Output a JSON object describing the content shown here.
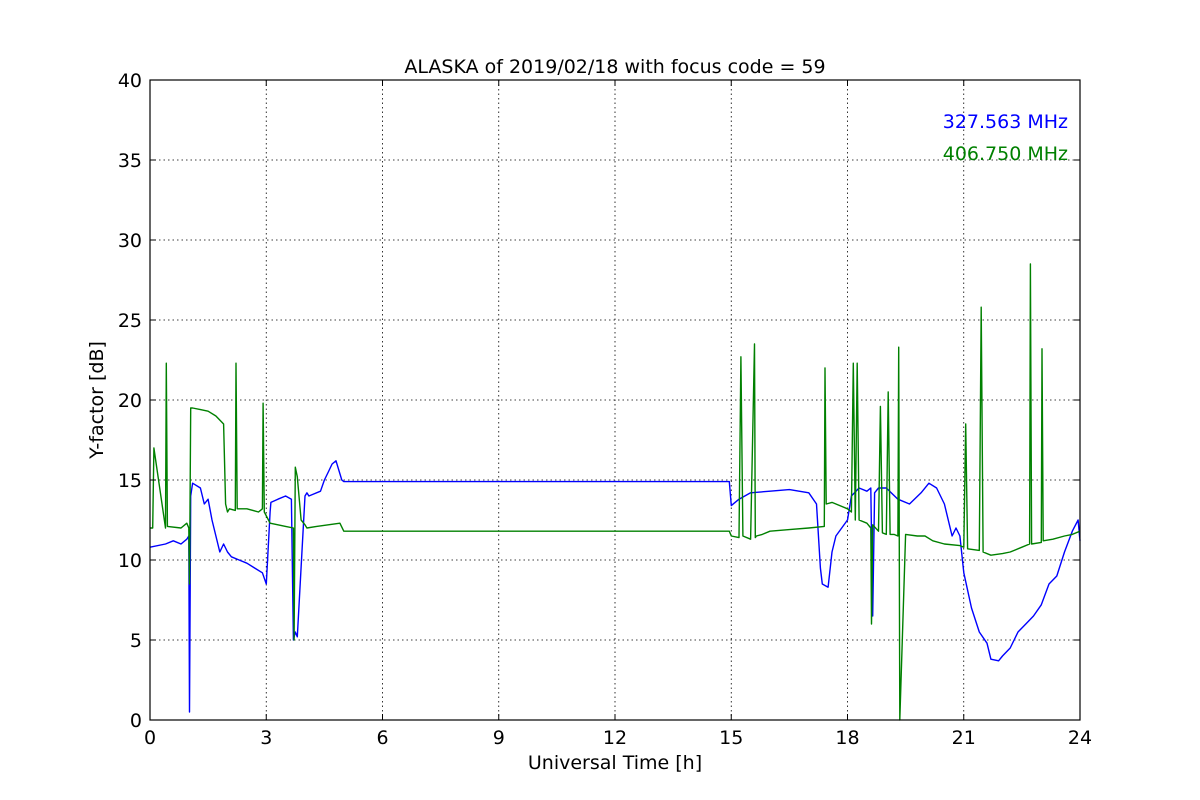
{
  "chart_data": {
    "type": "line",
    "title": "ALASKA of 2019/02/18 with focus code = 59",
    "xlabel": "Universal Time [h]",
    "ylabel": "Y-factor [dB]",
    "xlim": [
      0,
      24
    ],
    "ylim": [
      0,
      40
    ],
    "xticks": [
      0,
      3,
      6,
      9,
      12,
      15,
      18,
      21,
      24
    ],
    "yticks": [
      0,
      5,
      10,
      15,
      20,
      25,
      30,
      35,
      40
    ],
    "grid": true,
    "legend_position": "top-right",
    "series": [
      {
        "name": "327.563 MHz",
        "color": "#0000ff",
        "x": [
          0,
          0.4,
          0.6,
          0.8,
          0.95,
          1.0,
          1.02,
          1.05,
          1.1,
          1.3,
          1.4,
          1.5,
          1.6,
          1.7,
          1.8,
          1.9,
          2.0,
          2.1,
          2.3,
          2.5,
          2.7,
          2.9,
          3.0,
          3.1,
          3.12,
          3.3,
          3.5,
          3.65,
          3.7,
          3.75,
          3.8,
          4.0,
          4.05,
          4.1,
          4.2,
          4.4,
          4.5,
          4.6,
          4.7,
          4.8,
          4.95,
          5.0,
          5.1,
          14.95,
          15.0,
          15.2,
          15.5,
          16.0,
          16.5,
          17.0,
          17.2,
          17.3,
          17.35,
          17.5,
          17.6,
          17.7,
          18.0,
          18.1,
          18.3,
          18.5,
          18.6,
          18.65,
          18.7,
          18.8,
          19.0,
          19.3,
          19.6,
          19.9,
          20.1,
          20.3,
          20.5,
          20.7,
          20.8,
          20.9,
          21.0,
          21.2,
          21.4,
          21.6,
          21.7,
          21.9,
          22.0,
          22.2,
          22.4,
          22.6,
          22.8,
          23.0,
          23.2,
          23.4,
          23.6,
          23.8,
          23.95,
          24.0
        ],
        "y": [
          10.8,
          11.0,
          11.2,
          11.0,
          11.3,
          11.5,
          0.5,
          14.0,
          14.8,
          14.5,
          13.5,
          13.8,
          12.5,
          11.5,
          10.5,
          11.0,
          10.5,
          10.2,
          10.0,
          9.8,
          9.5,
          9.2,
          8.5,
          13.0,
          13.6,
          13.8,
          14.0,
          13.8,
          5.0,
          5.5,
          5.2,
          14.0,
          14.2,
          14.0,
          14.1,
          14.3,
          15.0,
          15.5,
          16.0,
          16.2,
          15.0,
          14.9,
          14.9,
          14.9,
          13.4,
          13.8,
          14.2,
          14.3,
          14.4,
          14.2,
          13.5,
          9.5,
          8.5,
          8.3,
          10.5,
          11.5,
          12.5,
          14.0,
          14.5,
          14.3,
          14.5,
          6.5,
          14.2,
          14.5,
          14.5,
          13.8,
          13.5,
          14.2,
          14.8,
          14.5,
          13.5,
          11.5,
          12.0,
          11.5,
          9.2,
          7.0,
          5.5,
          4.8,
          3.8,
          3.7,
          4.0,
          4.5,
          5.5,
          6.0,
          6.5,
          7.2,
          8.5,
          9.0,
          10.5,
          11.8,
          12.5,
          11.2
        ]
      },
      {
        "name": "406.750 MHz",
        "color": "#008000",
        "x": [
          0,
          0.07,
          0.1,
          0.4,
          0.42,
          0.45,
          0.8,
          0.95,
          1.0,
          1.02,
          1.05,
          1.1,
          1.3,
          1.5,
          1.7,
          1.9,
          1.95,
          2.0,
          2.05,
          2.2,
          2.22,
          2.25,
          2.5,
          2.8,
          2.9,
          2.92,
          2.95,
          3.1,
          3.3,
          3.5,
          3.7,
          3.72,
          3.75,
          3.8,
          3.9,
          4.0,
          4.05,
          4.3,
          4.6,
          4.9,
          5.0,
          5.1,
          14.95,
          15.0,
          15.2,
          15.25,
          15.3,
          15.5,
          15.6,
          15.62,
          15.65,
          15.8,
          16.0,
          16.5,
          17.0,
          17.4,
          17.42,
          17.45,
          17.6,
          18.0,
          18.1,
          18.15,
          18.2,
          18.25,
          18.3,
          18.5,
          18.6,
          18.62,
          18.65,
          18.8,
          18.85,
          18.9,
          19.0,
          19.05,
          19.1,
          19.2,
          19.3,
          19.32,
          19.35,
          19.5,
          19.8,
          20.0,
          20.2,
          20.5,
          20.9,
          21.0,
          21.05,
          21.1,
          21.4,
          21.45,
          21.5,
          21.7,
          22.0,
          22.2,
          22.5,
          22.7,
          22.72,
          22.75,
          23.0,
          23.02,
          23.05,
          23.3,
          23.6,
          23.8,
          24.0
        ],
        "y": [
          12.0,
          12.0,
          17.0,
          12.0,
          22.3,
          12.1,
          12.0,
          12.3,
          12.0,
          8.5,
          19.5,
          19.5,
          19.4,
          19.3,
          19.0,
          18.5,
          13.5,
          13.0,
          13.2,
          13.1,
          22.3,
          13.2,
          13.2,
          13.0,
          13.2,
          19.8,
          13.0,
          12.3,
          12.2,
          12.1,
          12.0,
          5.0,
          15.8,
          15.2,
          12.5,
          12.2,
          12.0,
          12.1,
          12.2,
          12.3,
          11.8,
          11.8,
          11.8,
          11.5,
          11.4,
          22.7,
          11.5,
          11.3,
          23.5,
          11.4,
          11.5,
          11.6,
          11.8,
          11.9,
          12.0,
          12.1,
          22.0,
          13.5,
          13.6,
          13.2,
          13.0,
          22.3,
          12.5,
          22.3,
          12.5,
          12.3,
          12.0,
          6.0,
          12.2,
          11.8,
          19.6,
          11.7,
          11.6,
          20.5,
          11.6,
          11.6,
          11.5,
          23.3,
          0.0,
          11.6,
          11.5,
          11.5,
          11.2,
          11.0,
          10.9,
          10.8,
          18.5,
          10.7,
          10.6,
          25.8,
          10.5,
          10.3,
          10.4,
          10.5,
          10.8,
          11.0,
          28.5,
          11.0,
          11.1,
          23.2,
          11.2,
          11.3,
          11.5,
          11.6,
          11.8
        ]
      }
    ]
  }
}
